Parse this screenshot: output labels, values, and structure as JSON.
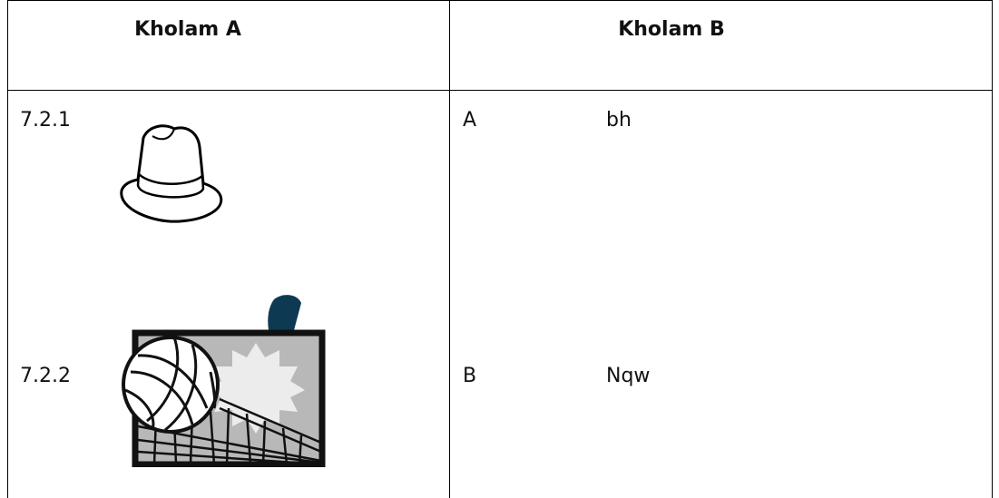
{
  "table": {
    "header": [
      "Kholam A",
      "Kholam B"
    ],
    "rows": [
      [
        "7.2.1",
        "A",
        "bh"
      ],
      [
        "7.2.2",
        "B",
        "Nqw"
      ]
    ]
  }
}
